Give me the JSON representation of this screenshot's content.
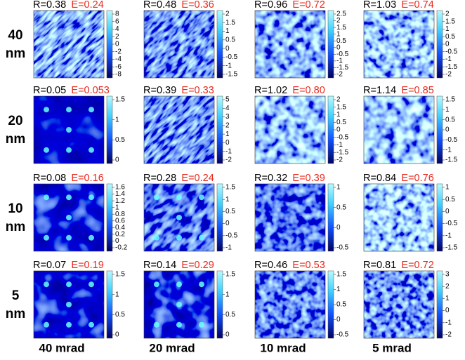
{
  "columns": [
    "40 mrad",
    "20 mrad",
    "10 mrad",
    "5 mrad"
  ],
  "rows": [
    {
      "label": [
        "40",
        "nm"
      ],
      "panels": [
        {
          "r": "R=0.38",
          "e": "E=0.24",
          "colorbar_ticks": [
            "8",
            "6",
            "4",
            "2",
            "0",
            "-2",
            "-4",
            "-6",
            "-8"
          ]
        },
        {
          "r": "R=0.48",
          "e": "E=0.36",
          "colorbar_ticks": [
            "2",
            "1.5",
            "1",
            "0.5",
            "0",
            "-0.5",
            "-1",
            "-1.5"
          ]
        },
        {
          "r": "R=0.96",
          "e": "E=0.72",
          "colorbar_ticks": [
            "2.5",
            "2",
            "1.5",
            "1",
            "0.5",
            "0",
            "-0.5",
            "-1",
            "-1.5",
            "-2"
          ]
        },
        {
          "r": "R=1.03",
          "e": "E=0.74",
          "colorbar_ticks": [
            "2",
            "1.5",
            "1",
            "0.5",
            "0",
            "-0.5",
            "-1",
            "-1.5",
            "-2"
          ]
        }
      ]
    },
    {
      "label": [
        "20",
        "nm"
      ],
      "panels": [
        {
          "r": "R=0.05",
          "e": "E=0.053",
          "colorbar_ticks": [
            "1.5",
            "1",
            "0.5",
            "0"
          ]
        },
        {
          "r": "R=0.39",
          "e": "E=0.33",
          "colorbar_ticks": [
            "5",
            "4",
            "3",
            "2",
            "1",
            "0",
            "-1",
            "-2"
          ]
        },
        {
          "r": "R=1.02",
          "e": "E=0.80",
          "colorbar_ticks": [
            "2",
            "1.5",
            "1",
            "0.5",
            "0",
            "-0.5",
            "-1",
            "-1.5",
            "-2"
          ]
        },
        {
          "r": "R=1.14",
          "e": "E=0.85",
          "colorbar_ticks": [
            "1.5",
            "1",
            "0.5",
            "0",
            "-0.5",
            "-1",
            "-1.5"
          ]
        }
      ]
    },
    {
      "label": [
        "10",
        "nm"
      ],
      "panels": [
        {
          "r": "R=0.08",
          "e": "E=0.16",
          "colorbar_ticks": [
            "1.6",
            "1.4",
            "1.2",
            "1",
            "0.8",
            "0.6",
            "0.4",
            "0.2",
            "0",
            "-0.2"
          ]
        },
        {
          "r": "R=0.28",
          "e": "E=0.24",
          "colorbar_ticks": [
            "1.5",
            "1",
            "0.5",
            "0",
            "-0.5",
            "-1"
          ]
        },
        {
          "r": "R=0.32",
          "e": "E=0.39",
          "colorbar_ticks": [
            "1",
            "0.5",
            "0",
            "-0.5"
          ]
        },
        {
          "r": "R=0.84",
          "e": "E=0.76",
          "colorbar_ticks": [
            "1",
            "0.5",
            "0",
            "-0.5",
            "-1",
            "-1.5"
          ]
        }
      ]
    },
    {
      "label": [
        "5",
        "nm"
      ],
      "panels": [
        {
          "r": "R=0.07",
          "e": "E=0.19",
          "colorbar_ticks": [
            "1.5",
            "1",
            "0.5",
            "0"
          ]
        },
        {
          "r": "R=0.14",
          "e": "E=0.29",
          "colorbar_ticks": [
            "1.5",
            "1",
            "0.5",
            "0"
          ]
        },
        {
          "r": "R=0.46",
          "e": "E=0.53",
          "colorbar_ticks": [
            "1.5",
            "1",
            "0.5",
            "0",
            "-0.5"
          ]
        },
        {
          "r": "R=0.81",
          "e": "E=0.72",
          "colorbar_ticks": [
            "3",
            "2",
            "1",
            "0",
            "-1",
            "-2"
          ]
        }
      ]
    }
  ]
}
